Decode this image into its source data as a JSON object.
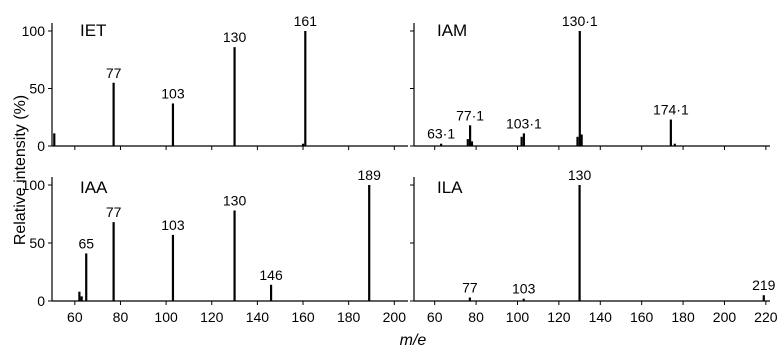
{
  "figure": {
    "ylabel": "Relative intensity (%)",
    "xlabel": "m/e"
  },
  "chart_data": [
    {
      "type": "bar",
      "title": "IET",
      "xlim": [
        50,
        206
      ],
      "ylim": [
        0,
        100
      ],
      "x_ticks": [
        60,
        80,
        100,
        120,
        140,
        160,
        180,
        200
      ],
      "y_ticks": [
        0,
        50,
        100
      ],
      "x_tick_labels": [],
      "y_tick_labels": [
        "0",
        "50",
        "100"
      ],
      "peaks": [
        {
          "mz": 51,
          "intensity": 11
        },
        {
          "mz": 77,
          "intensity": 55,
          "label": "77"
        },
        {
          "mz": 103,
          "intensity": 37,
          "label": "103"
        },
        {
          "mz": 130,
          "intensity": 86,
          "label": "130"
        },
        {
          "mz": 160,
          "intensity": 2
        },
        {
          "mz": 161,
          "intensity": 100,
          "label": "161"
        }
      ]
    },
    {
      "type": "bar",
      "title": "IAM",
      "xlim": [
        50,
        222
      ],
      "ylim": [
        0,
        100
      ],
      "x_ticks": [
        60,
        80,
        100,
        120,
        140,
        160,
        180,
        200,
        220
      ],
      "y_ticks": [
        0,
        50,
        100
      ],
      "x_tick_labels": [],
      "y_tick_labels": [],
      "peaks": [
        {
          "mz": 63.1,
          "intensity": 2,
          "label": "63·1"
        },
        {
          "mz": 76,
          "intensity": 6
        },
        {
          "mz": 77.1,
          "intensity": 18,
          "label": "77·1"
        },
        {
          "mz": 78,
          "intensity": 4
        },
        {
          "mz": 102,
          "intensity": 8
        },
        {
          "mz": 103.1,
          "intensity": 11,
          "label": "103·1"
        },
        {
          "mz": 129,
          "intensity": 8
        },
        {
          "mz": 130.1,
          "intensity": 100,
          "label": "130·1"
        },
        {
          "mz": 131,
          "intensity": 10
        },
        {
          "mz": 174.1,
          "intensity": 23,
          "label": "174·1"
        },
        {
          "mz": 176,
          "intensity": 2
        }
      ]
    },
    {
      "type": "bar",
      "title": "IAA",
      "xlim": [
        50,
        206
      ],
      "ylim": [
        0,
        100
      ],
      "x_ticks": [
        60,
        80,
        100,
        120,
        140,
        160,
        180,
        200
      ],
      "y_ticks": [
        0,
        50,
        100
      ],
      "x_tick_labels": [
        "60",
        "80",
        "100",
        "120",
        "140",
        "160",
        "180",
        "200"
      ],
      "y_tick_labels": [
        "0",
        "50",
        "100"
      ],
      "peaks": [
        {
          "mz": 62,
          "intensity": 8
        },
        {
          "mz": 63,
          "intensity": 4
        },
        {
          "mz": 65,
          "intensity": 41,
          "label": "65"
        },
        {
          "mz": 77,
          "intensity": 68,
          "label": "77"
        },
        {
          "mz": 103,
          "intensity": 57,
          "label": "103"
        },
        {
          "mz": 130,
          "intensity": 78,
          "label": "130"
        },
        {
          "mz": 146,
          "intensity": 14,
          "label": "146"
        },
        {
          "mz": 189,
          "intensity": 100,
          "label": "189"
        }
      ]
    },
    {
      "type": "bar",
      "title": "ILA",
      "xlim": [
        50,
        222
      ],
      "ylim": [
        0,
        100
      ],
      "x_ticks": [
        60,
        80,
        100,
        120,
        140,
        160,
        180,
        200,
        220
      ],
      "y_ticks": [
        0,
        50,
        100
      ],
      "x_tick_labels": [
        "60",
        "80",
        "100",
        "120",
        "140",
        "160",
        "180",
        "200",
        "220"
      ],
      "y_tick_labels": [],
      "peaks": [
        {
          "mz": 77,
          "intensity": 3,
          "label": "77"
        },
        {
          "mz": 103,
          "intensity": 2,
          "label": "103"
        },
        {
          "mz": 130,
          "intensity": 100,
          "label": "130"
        },
        {
          "mz": 219,
          "intensity": 5,
          "label": "219"
        }
      ]
    }
  ]
}
